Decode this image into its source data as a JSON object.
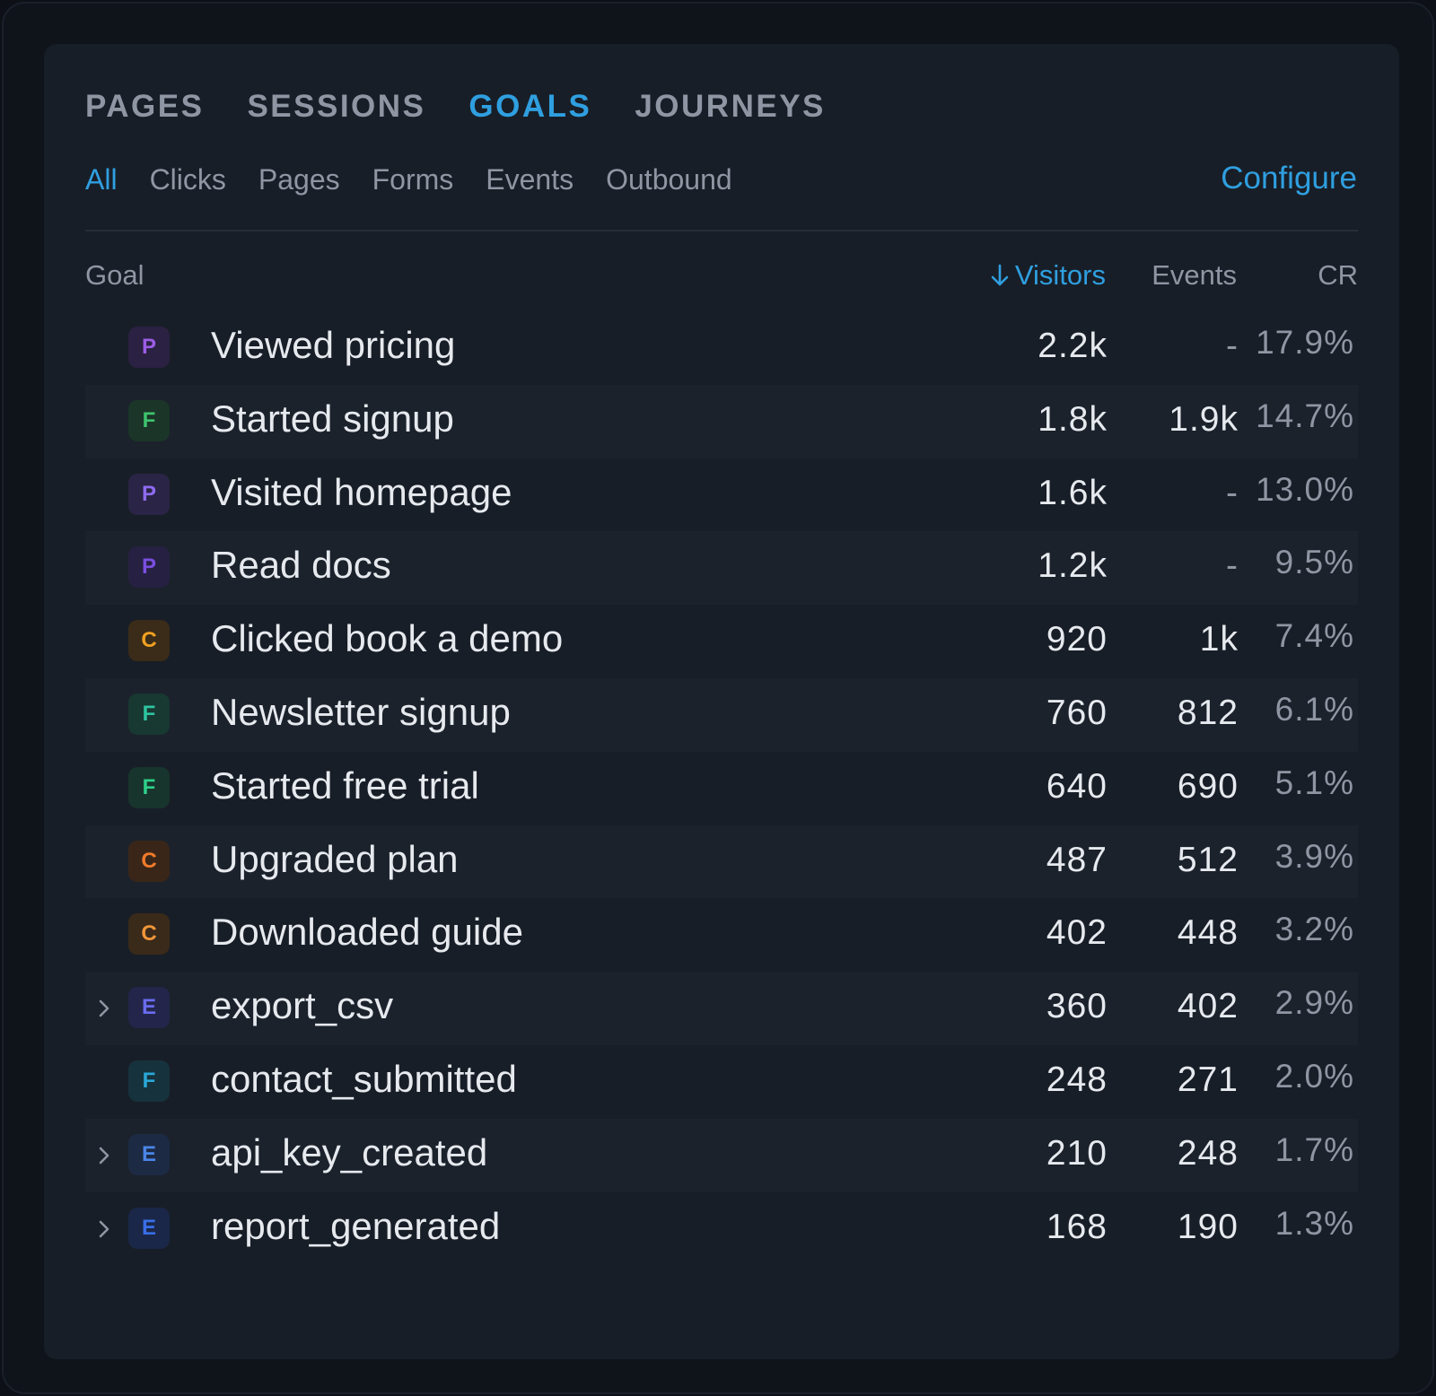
{
  "tabs": [
    {
      "label": "PAGES",
      "active": false
    },
    {
      "label": "SESSIONS",
      "active": false
    },
    {
      "label": "GOALS",
      "active": true
    },
    {
      "label": "JOURNEYS",
      "active": false
    }
  ],
  "subtabs": [
    {
      "label": "All",
      "active": true
    },
    {
      "label": "Clicks",
      "active": false
    },
    {
      "label": "Pages",
      "active": false
    },
    {
      "label": "Forms",
      "active": false
    },
    {
      "label": "Events",
      "active": false
    },
    {
      "label": "Outbound",
      "active": false
    }
  ],
  "configure_label": "Configure",
  "table": {
    "headers": {
      "goal": "Goal",
      "visitors": "Visitors",
      "events": "Events",
      "cr": "CR",
      "sort_icon": "arrow-down-icon"
    },
    "rows": [
      {
        "badge": "P",
        "badge_color": "#9b5de5",
        "badge_bg": "#2b2142",
        "name": "Viewed pricing",
        "visitors": "2.2k",
        "events": "-",
        "cr": "17.9%",
        "expandable": false
      },
      {
        "badge": "F",
        "badge_color": "#3ec46d",
        "badge_bg": "#1b3528",
        "name": "Started signup",
        "visitors": "1.8k",
        "events": "1.9k",
        "cr": "14.7%",
        "expandable": false
      },
      {
        "badge": "P",
        "badge_color": "#8e6cf0",
        "badge_bg": "#2a2446",
        "name": "Visited homepage",
        "visitors": "1.6k",
        "events": "-",
        "cr": "13.0%",
        "expandable": false
      },
      {
        "badge": "P",
        "badge_color": "#7a4fe0",
        "badge_bg": "#262042",
        "name": "Read docs",
        "visitors": "1.2k",
        "events": "-",
        "cr": "9.5%",
        "expandable": false
      },
      {
        "badge": "C",
        "badge_color": "#f0a020",
        "badge_bg": "#3a2c18",
        "name": "Clicked book a demo",
        "visitors": "920",
        "events": "1k",
        "cr": "7.4%",
        "expandable": false
      },
      {
        "badge": "F",
        "badge_color": "#2ec4a0",
        "badge_bg": "#183832",
        "name": "Newsletter signup",
        "visitors": "760",
        "events": "812",
        "cr": "6.1%",
        "expandable": false
      },
      {
        "badge": "F",
        "badge_color": "#2ecf8a",
        "badge_bg": "#17352c",
        "name": "Started free trial",
        "visitors": "640",
        "events": "690",
        "cr": "5.1%",
        "expandable": false
      },
      {
        "badge": "C",
        "badge_color": "#f07a2a",
        "badge_bg": "#3a2619",
        "name": "Upgraded plan",
        "visitors": "487",
        "events": "512",
        "cr": "3.9%",
        "expandable": false
      },
      {
        "badge": "C",
        "badge_color": "#f0963a",
        "badge_bg": "#3a2a1a",
        "name": "Downloaded guide",
        "visitors": "402",
        "events": "448",
        "cr": "3.2%",
        "expandable": false
      },
      {
        "badge": "E",
        "badge_color": "#6a6cf0",
        "badge_bg": "#23264a",
        "name": "export_csv",
        "visitors": "360",
        "events": "402",
        "cr": "2.9%",
        "expandable": true
      },
      {
        "badge": "F",
        "badge_color": "#2aa8d8",
        "badge_bg": "#16323d",
        "name": "contact_submitted",
        "visitors": "248",
        "events": "271",
        "cr": "2.0%",
        "expandable": false
      },
      {
        "badge": "E",
        "badge_color": "#4a86e8",
        "badge_bg": "#1d2a44",
        "name": "api_key_created",
        "visitors": "210",
        "events": "248",
        "cr": "1.7%",
        "expandable": true
      },
      {
        "badge": "E",
        "badge_color": "#3a6ee8",
        "badge_bg": "#1a2748",
        "name": "report_generated",
        "visitors": "168",
        "events": "190",
        "cr": "1.3%",
        "expandable": true
      }
    ]
  }
}
